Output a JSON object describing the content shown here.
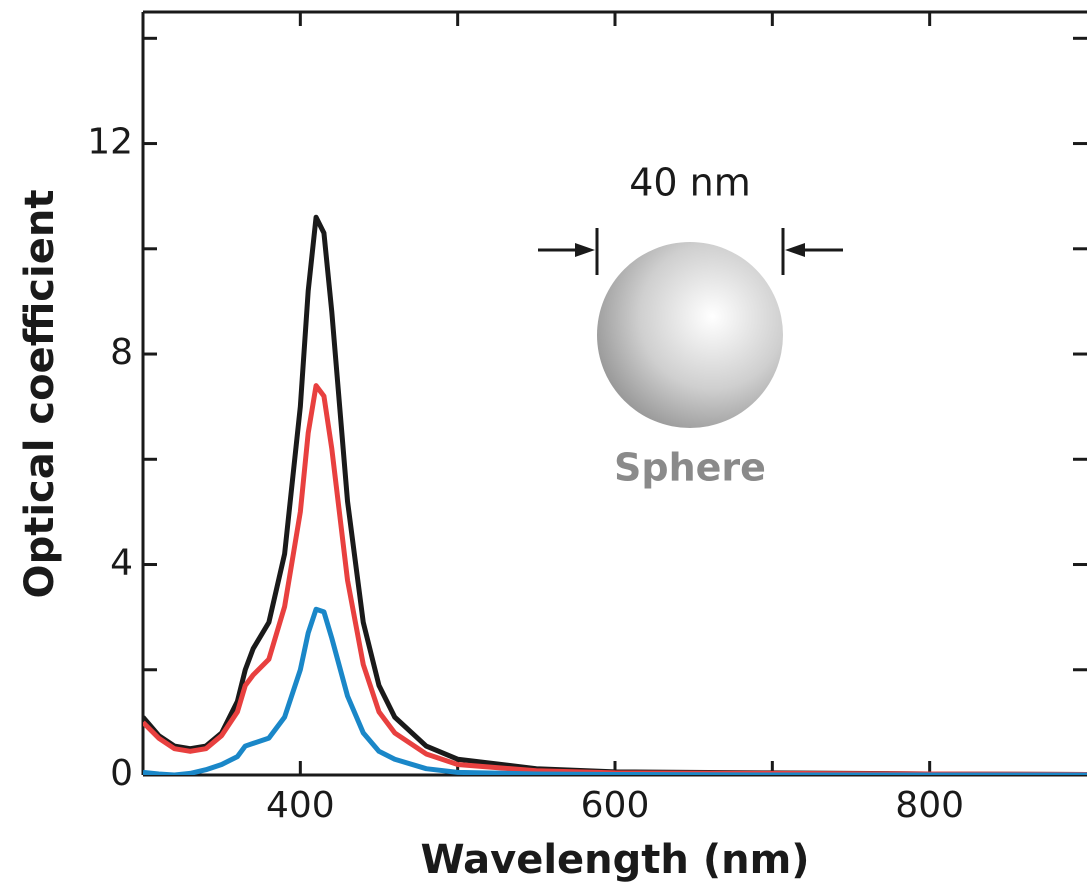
{
  "chart_data": {
    "type": "line",
    "xlabel": "Wavelength (nm)",
    "ylabel": "Optical coefficient",
    "annotations": [
      "40 nm",
      "Sphere"
    ],
    "xlim": [
      300,
      900
    ],
    "ylim": [
      0,
      14.5
    ],
    "xticks": [
      400,
      600,
      800
    ],
    "yticks": [
      0,
      4,
      8,
      12
    ],
    "xminorticks": [
      500,
      700
    ],
    "yminorticks": [
      2,
      6,
      10,
      14
    ],
    "x": [
      300,
      310,
      320,
      330,
      340,
      350,
      360,
      365,
      370,
      380,
      390,
      400,
      405,
      410,
      415,
      420,
      430,
      440,
      450,
      460,
      480,
      500,
      550,
      600,
      700,
      800,
      900
    ],
    "series": [
      {
        "color": "#1a1a1a",
        "values": [
          1.1,
          0.75,
          0.55,
          0.5,
          0.55,
          0.8,
          1.4,
          2.0,
          2.4,
          2.9,
          4.2,
          7.0,
          9.2,
          10.6,
          10.3,
          8.8,
          5.2,
          2.9,
          1.7,
          1.1,
          0.55,
          0.3,
          0.12,
          0.06,
          0.04,
          0.02,
          0.01
        ]
      },
      {
        "color": "#e8403f",
        "values": [
          1.0,
          0.7,
          0.5,
          0.45,
          0.5,
          0.75,
          1.2,
          1.7,
          1.9,
          2.2,
          3.2,
          5.0,
          6.5,
          7.4,
          7.2,
          6.2,
          3.7,
          2.1,
          1.2,
          0.8,
          0.4,
          0.2,
          0.08,
          0.04,
          0.03,
          0.02,
          0.01
        ]
      },
      {
        "color": "#1a87c8",
        "values": [
          0.05,
          0.02,
          0,
          0.03,
          0.1,
          0.2,
          0.35,
          0.55,
          0.6,
          0.7,
          1.1,
          2.0,
          2.7,
          3.15,
          3.1,
          2.6,
          1.5,
          0.8,
          0.45,
          0.3,
          0.12,
          0.05,
          0.02,
          0.01,
          0,
          0,
          0
        ]
      }
    ]
  }
}
